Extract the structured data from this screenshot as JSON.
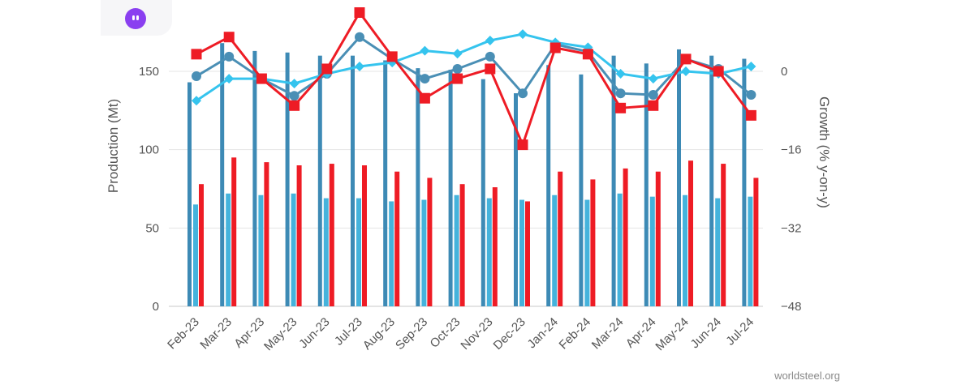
{
  "app": {
    "badge_icon": "app-logo-icon"
  },
  "source": "worldsteel.org",
  "chart_data": {
    "type": "bar+line",
    "categories": [
      "Feb-23",
      "Mar-23",
      "Apr-23",
      "May-23",
      "Jun-23",
      "Jul-23",
      "Aug-23",
      "Sep-23",
      "Oct-23",
      "Nov-23",
      "Dec-23",
      "Jan-24",
      "Feb-24",
      "Mar-24",
      "Apr-24",
      "May-24",
      "Jun-24",
      "Jul-24"
    ],
    "ylabel": "Production (Mt)",
    "y2label": "Growth (% y-on-y)",
    "ylim": [
      0,
      150
    ],
    "y2lim": [
      -48,
      0
    ],
    "yticks": [
      0,
      50,
      100,
      150
    ],
    "y2ticks": [
      -48,
      -32,
      -16,
      0
    ],
    "bar_series": [
      {
        "color": "#3d8ab5",
        "values": [
          143,
          168,
          163,
          162,
          160,
          160,
          157,
          152,
          151,
          145,
          136,
          154,
          148,
          160,
          155,
          164,
          160,
          158
        ]
      },
      {
        "color": "#45b3dc",
        "values": [
          65,
          72,
          71,
          72,
          69,
          69,
          67,
          68,
          71,
          69,
          68,
          71,
          68,
          72,
          70,
          71,
          69,
          70
        ]
      },
      {
        "color": "#ee1c25",
        "values": [
          78,
          95,
          92,
          90,
          91,
          90,
          86,
          82,
          78,
          76,
          67,
          86,
          81,
          88,
          86,
          93,
          91,
          82
        ]
      }
    ],
    "line_series": [
      {
        "color": "#4a8fb5",
        "marker": "circle",
        "axis": "right",
        "values": [
          -1,
          3,
          -1.5,
          -5,
          -0.5,
          7,
          2.5,
          -1.5,
          0.5,
          3,
          -4.5,
          5.5,
          4,
          -4.5,
          -4.8,
          2.5,
          0.5,
          -4.8
        ]
      },
      {
        "color": "#35c4ee",
        "marker": "diamond",
        "axis": "right",
        "values": [
          -6,
          -1.5,
          -1.5,
          -2.5,
          -0.5,
          1,
          1.8,
          4.2,
          3.6,
          6.3,
          7.6,
          5.9,
          4.9,
          -0.5,
          -1.5,
          0,
          -0.5,
          1
        ]
      },
      {
        "color": "#ee1c25",
        "marker": "square",
        "axis": "right",
        "values": [
          3.5,
          7,
          -1.5,
          -7,
          0.5,
          12,
          3,
          -5.5,
          -1.5,
          0.5,
          -15,
          4.8,
          3.5,
          -7.5,
          -7,
          2.5,
          0,
          -9
        ]
      }
    ]
  }
}
